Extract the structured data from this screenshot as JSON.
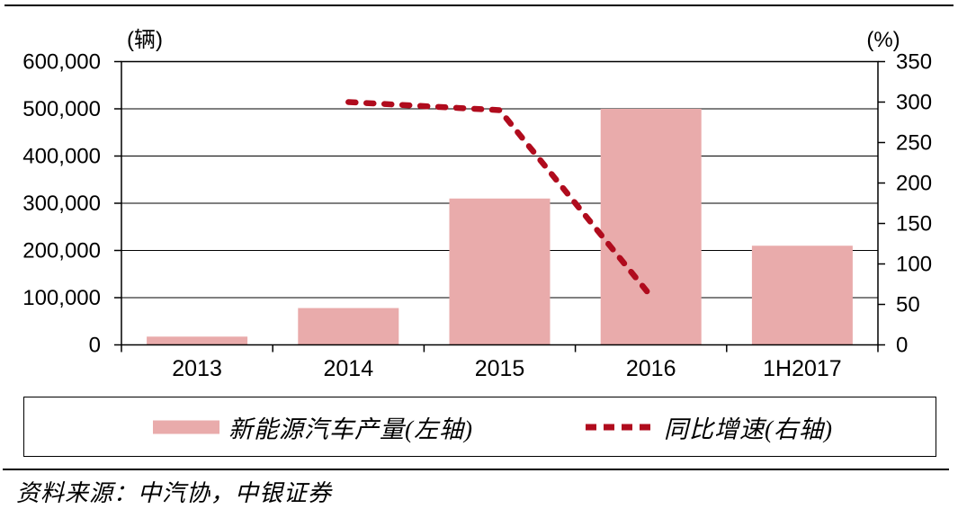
{
  "figure": {
    "source_note": "资料来源：中汽协，中银证券"
  },
  "chart_data": {
    "type": "combo-bar-line",
    "title": "",
    "categories": [
      "2013",
      "2014",
      "2015",
      "2016",
      "1H2017"
    ],
    "series": [
      {
        "name": "新能源汽车产量(左轴)",
        "type": "bar",
        "axis": "left",
        "color": "#e9abab",
        "values": [
          17500,
          78000,
          310000,
          500000,
          210000
        ]
      },
      {
        "name": "同比增速(右轴)",
        "type": "line",
        "style": "dashed",
        "axis": "right",
        "color": "#b00b1d",
        "values": [
          null,
          300,
          290,
          60,
          null
        ]
      }
    ],
    "left_axis": {
      "unit": "(辆)",
      "min": 0,
      "max": 600000,
      "step": 100000,
      "tick_labels": [
        "600,000",
        "500,000",
        "400,000",
        "300,000",
        "200,000",
        "100,000",
        "0"
      ]
    },
    "right_axis": {
      "unit": "(%)",
      "min": 0,
      "max": 350,
      "step": 50,
      "tick_labels": [
        "350",
        "300",
        "250",
        "200",
        "150",
        "100",
        "50",
        "0"
      ]
    },
    "grid": "horizontal-major",
    "legend_position": "bottom-boxed"
  }
}
